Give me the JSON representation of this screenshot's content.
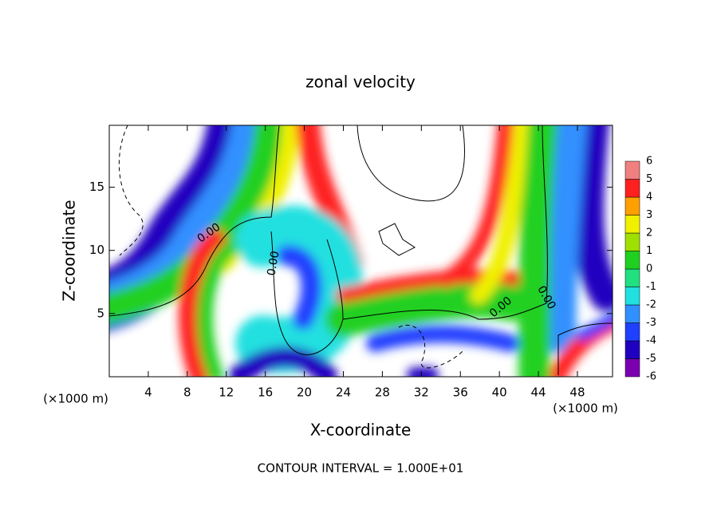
{
  "chart_data": {
    "type": "contour",
    "title": "zonal velocity",
    "x_label": "X-coordinate",
    "y_label": "Z-coordinate",
    "x_unit": "(×1000 m)",
    "y_unit": "(×1000 m)",
    "footer": "CONTOUR INTERVAL = 1.000E+01",
    "contour_labels": [
      "0.00",
      "0.00",
      "0.00",
      "0.00"
    ],
    "xlim": [
      0,
      51.6
    ],
    "xticks": [
      4,
      8,
      12,
      16,
      20,
      24,
      28,
      32,
      36,
      40,
      44,
      48
    ],
    "ylim": [
      0,
      19.9
    ],
    "yticks": [
      5,
      10,
      15
    ],
    "levels": [
      -6,
      -5,
      -4,
      -3,
      -2,
      -1,
      0,
      1,
      2,
      3,
      4,
      5,
      6
    ],
    "colors": [
      "#7a00b0",
      "#2000c0",
      "#2040ff",
      "#3090ff",
      "#20e0e0",
      "#20e080",
      "#20d020",
      "#a0e000",
      "#f0f000",
      "#ffa000",
      "#ff2020",
      "#f08080"
    ]
  }
}
